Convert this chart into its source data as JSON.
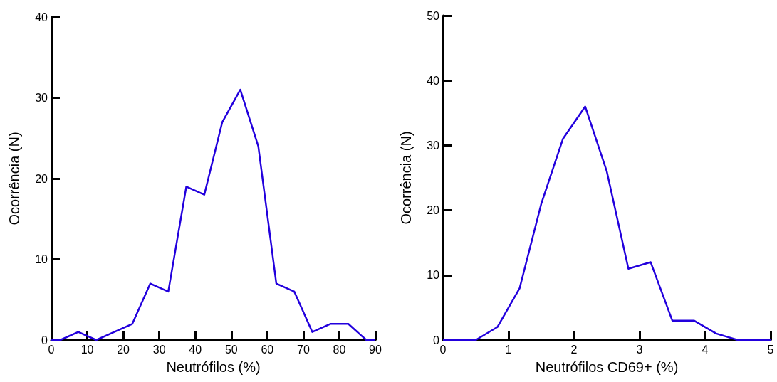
{
  "chart_data": [
    {
      "type": "line",
      "xlabel": "Neutrófilos (%)",
      "ylabel": "Ocorrência (N)",
      "xlim": [
        0,
        90
      ],
      "xticks": [
        0,
        10,
        20,
        30,
        40,
        50,
        60,
        70,
        80,
        90
      ],
      "ylim": [
        0,
        40
      ],
      "yticks": [
        0,
        10,
        20,
        30,
        40
      ],
      "grid": false,
      "marker": "none",
      "line_style": "solid",
      "series": [
        {
          "color": "#2200dd",
          "x": [
            0,
            2.5,
            7.5,
            12.5,
            17.5,
            22.5,
            27.5,
            32.5,
            37.5,
            42.5,
            47.5,
            52.5,
            57.5,
            62.5,
            67.5,
            72.5,
            77.5,
            82.5,
            87.5,
            90
          ],
          "values": [
            0,
            0,
            1,
            0,
            1,
            2,
            7,
            6,
            19,
            18,
            27,
            31,
            24,
            7,
            6,
            1,
            2,
            2,
            0,
            0
          ]
        }
      ]
    },
    {
      "type": "line",
      "xlabel": "Neutrófilos CD69+ (%)",
      "ylabel": "Ocorrência (N)",
      "xlim": [
        0,
        5
      ],
      "xticks": [
        0,
        1,
        2,
        3,
        4,
        5
      ],
      "ylim": [
        0,
        50
      ],
      "yticks": [
        0,
        10,
        20,
        30,
        40,
        50
      ],
      "grid": false,
      "marker": "none",
      "line_style": "solid",
      "series": [
        {
          "color": "#2200dd",
          "x": [
            0,
            0.5,
            0.83,
            1.17,
            1.5,
            1.83,
            2.17,
            2.5,
            2.83,
            3.17,
            3.5,
            3.83,
            4.17,
            4.5,
            5
          ],
          "values": [
            0,
            0,
            2,
            8,
            21,
            31,
            36,
            26,
            11,
            12,
            3,
            3,
            1,
            0,
            0
          ]
        }
      ]
    }
  ]
}
